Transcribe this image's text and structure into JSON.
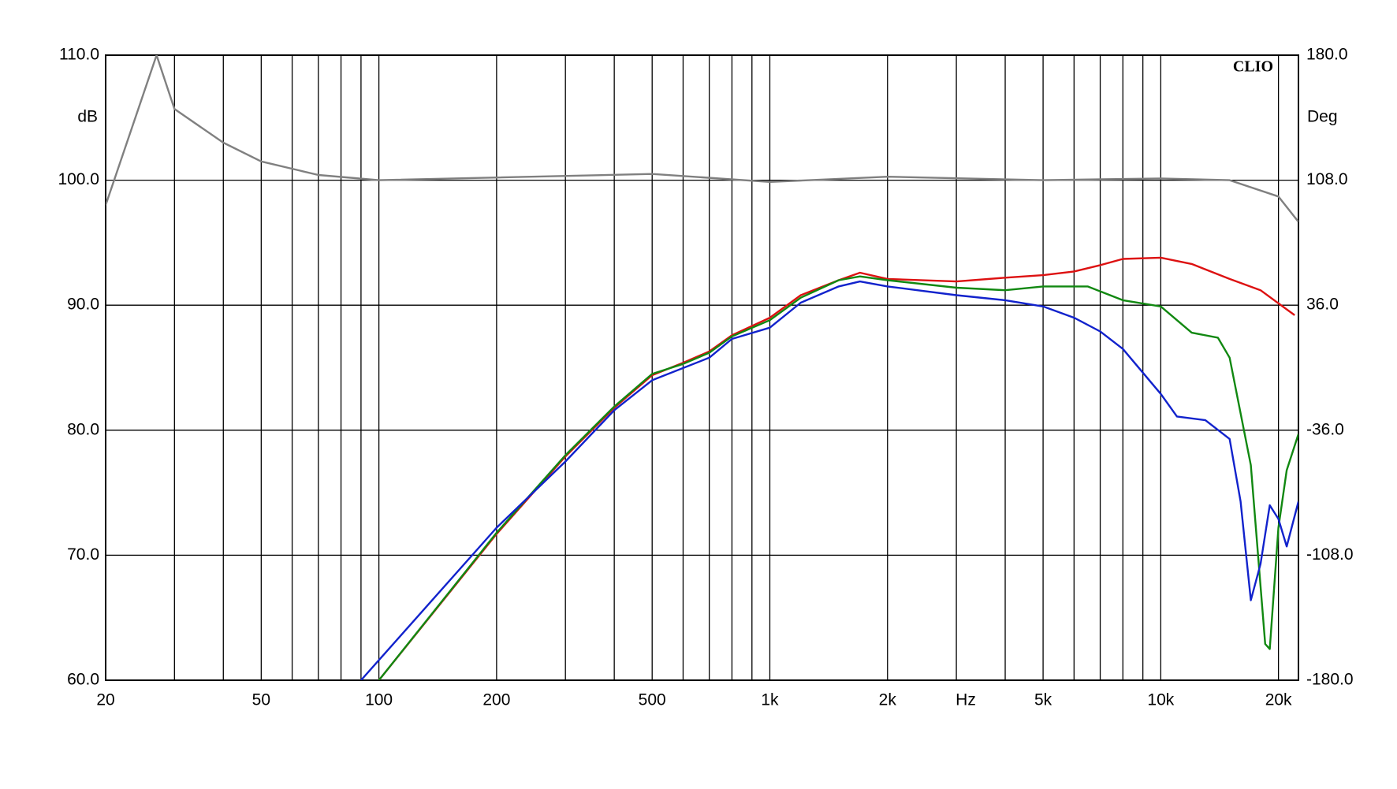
{
  "chart_data": {
    "type": "line",
    "xlabel": "Hz",
    "ylabel": "dB",
    "y2label": "Deg",
    "watermark": "CLIO",
    "xscale": "log",
    "xlim": [
      20,
      22500
    ],
    "xticks": [
      20,
      50,
      100,
      200,
      500,
      {
        "value": 1000,
        "label": "1k"
      },
      {
        "value": 2000,
        "label": "2k"
      },
      {
        "value": 5000,
        "label": "5k"
      },
      {
        "value": 10000,
        "label": "10k"
      },
      {
        "value": 20000,
        "label": "20k"
      }
    ],
    "xgrid": [
      20,
      30,
      40,
      50,
      60,
      70,
      80,
      90,
      100,
      200,
      300,
      400,
      500,
      600,
      700,
      800,
      900,
      1000,
      2000,
      3000,
      4000,
      5000,
      6000,
      7000,
      8000,
      9000,
      10000,
      20000
    ],
    "ylim": [
      60,
      110
    ],
    "yticks": [
      {
        "value": 60,
        "label": "60.0"
      },
      {
        "value": 70,
        "label": "70.0"
      },
      {
        "value": 80,
        "label": "80.0"
      },
      {
        "value": 90,
        "label": "90.0"
      },
      {
        "value": 100,
        "label": "100.0"
      },
      {
        "value": 110,
        "label": "110.0"
      }
    ],
    "y2lim": [
      -180,
      180
    ],
    "y2ticks": [
      {
        "value": -180,
        "label": "-180.0"
      },
      {
        "value": -108,
        "label": "-108.0"
      },
      {
        "value": -36,
        "label": "-36.0"
      },
      {
        "value": 36,
        "label": "36.0"
      },
      {
        "value": 108,
        "label": "108.0"
      },
      {
        "value": 180,
        "label": "180.0"
      }
    ],
    "grid": true,
    "series": [
      {
        "color": "#808080",
        "axis": "y2",
        "x": [
          20,
          27,
          30,
          40,
          50,
          70,
          100,
          500,
          1000,
          2000,
          5000,
          10000,
          15000,
          20000,
          22500
        ],
        "values": [
          93.6,
          180,
          149,
          129.6,
          118.8,
          111,
          108,
          111.6,
          107,
          110,
          108,
          109,
          108,
          98.6,
          84
        ]
      },
      {
        "color": "#dd1111",
        "x": [
          100,
          200,
          300,
          400,
          500,
          600,
          700,
          800,
          1000,
          1200,
          1500,
          1700,
          2000,
          3000,
          4000,
          5000,
          6000,
          7000,
          8000,
          10000,
          12000,
          15000,
          18000,
          22000
        ],
        "values": [
          60.0,
          71.7,
          77.9,
          81.8,
          84.4,
          85.4,
          86.3,
          87.6,
          89.0,
          90.8,
          92.0,
          92.6,
          92.1,
          91.9,
          92.2,
          92.4,
          92.7,
          93.2,
          93.7,
          93.8,
          93.3,
          92.1,
          91.2,
          89.2
        ]
      },
      {
        "color": "#118811",
        "x": [
          100,
          200,
          300,
          400,
          500,
          600,
          700,
          800,
          1000,
          1200,
          1500,
          1700,
          2000,
          3000,
          4000,
          5000,
          6500,
          8000,
          10000,
          12000,
          14000,
          15000,
          17000,
          18500,
          19000,
          20000,
          21000,
          22500
        ],
        "values": [
          60.0,
          71.8,
          78.0,
          81.9,
          84.5,
          85.3,
          86.2,
          87.5,
          88.8,
          90.6,
          92.0,
          92.3,
          92.0,
          91.4,
          91.2,
          91.5,
          91.5,
          90.4,
          89.9,
          87.8,
          87.4,
          85.8,
          77.2,
          62.9,
          62.5,
          72.2,
          76.8,
          79.7
        ]
      },
      {
        "color": "#1122cc",
        "x": [
          90,
          200,
          300,
          400,
          500,
          700,
          800,
          1000,
          1200,
          1500,
          1700,
          2000,
          3000,
          4000,
          5000,
          6000,
          7000,
          8000,
          10000,
          11000,
          13000,
          15000,
          16000,
          17000,
          18000,
          19000,
          20000,
          21000,
          22500
        ],
        "values": [
          60.0,
          72.2,
          77.5,
          81.6,
          84.0,
          85.8,
          87.3,
          88.2,
          90.2,
          91.5,
          91.9,
          91.5,
          90.8,
          90.4,
          89.9,
          89.0,
          87.9,
          86.5,
          82.9,
          81.1,
          80.8,
          79.3,
          74.3,
          66.4,
          69.3,
          74.0,
          72.9,
          70.7,
          74.3
        ]
      }
    ]
  }
}
